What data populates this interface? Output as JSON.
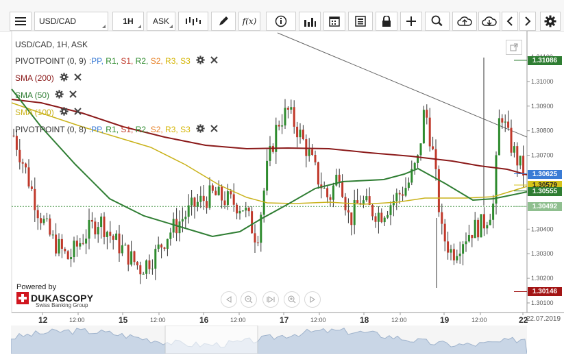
{
  "toolbar": {
    "symbol": "USD/CAD",
    "timeframe": "1H",
    "side": "ASK",
    "fx_label": "f(x)"
  },
  "chart": {
    "title": "USD/CAD, 1H, ASK",
    "indicators": [
      {
        "name": "PIVOTPOINT (0, 9)",
        "color": "#333333",
        "levels": [
          {
            "label": "PP",
            "color": "#3a7bd5"
          },
          {
            "label": "R1",
            "color": "#2e8b2e"
          },
          {
            "label": "S1",
            "color": "#c0392b"
          },
          {
            "label": "R2",
            "color": "#2e8b2e"
          },
          {
            "label": "S2",
            "color": "#e67e22"
          },
          {
            "label": "R3",
            "color": "#d4b400"
          },
          {
            "label": "S3",
            "color": "#d4b400"
          }
        ]
      },
      {
        "name": "SMA (200)",
        "color": "#8b1a1a"
      },
      {
        "name": "SMA (50)",
        "color": "#2e7d32"
      },
      {
        "name": "SMA (100)",
        "color": "#c9b21a"
      },
      {
        "name": "PIVOTPOINT (0, 8)",
        "color": "#333333",
        "levels": [
          {
            "label": "PP",
            "color": "#3a7bd5"
          },
          {
            "label": "R1",
            "color": "#2e8b2e"
          },
          {
            "label": "S1",
            "color": "#c0392b"
          },
          {
            "label": "R2",
            "color": "#2e8b2e"
          },
          {
            "label": "S2",
            "color": "#e67e22"
          },
          {
            "label": "R3",
            "color": "#d4b400"
          },
          {
            "label": "S3",
            "color": "#d4b400"
          }
        ]
      }
    ],
    "y_ticks": [
      "1.31100",
      "1.31000",
      "1.30900",
      "1.30800",
      "1.30700",
      "1.30400",
      "1.30300",
      "1.30200",
      "1.30100"
    ],
    "price_badges": [
      {
        "value": "1.31086",
        "bg": "#2e7d32",
        "fg": "#ffffff"
      },
      {
        "value": "1.30625",
        "bg": "#3a7bd5",
        "fg": "#ffffff"
      },
      {
        "value": "1.30579",
        "bg": "#d4c21a",
        "fg": "#222222"
      },
      {
        "value": "1.30555",
        "bg": "#2e7d32",
        "fg": "#ffffff"
      },
      {
        "value": "1.30492",
        "bg": "#8fbf8f",
        "fg": "#ffffff"
      },
      {
        "value": "1.30146",
        "bg": "#a31515",
        "fg": "#ffffff"
      }
    ],
    "x_labels": [
      {
        "text": "12",
        "big": true
      },
      {
        "text": "12:00",
        "big": false
      },
      {
        "text": "15",
        "big": true
      },
      {
        "text": "12:00",
        "big": false
      },
      {
        "text": "16",
        "big": true
      },
      {
        "text": "12:00",
        "big": false
      },
      {
        "text": "17",
        "big": true
      },
      {
        "text": "12:00",
        "big": false
      },
      {
        "text": "18",
        "big": true
      },
      {
        "text": "12:00",
        "big": false
      },
      {
        "text": "19",
        "big": true
      },
      {
        "text": "12:00",
        "big": false
      },
      {
        "text": "22",
        "big": true
      }
    ],
    "overview_date": "22.07.2019",
    "powered_by": "Powered by",
    "brand_name": "DUKASCOPY",
    "brand_sub": "Swiss Banking Group"
  }
}
